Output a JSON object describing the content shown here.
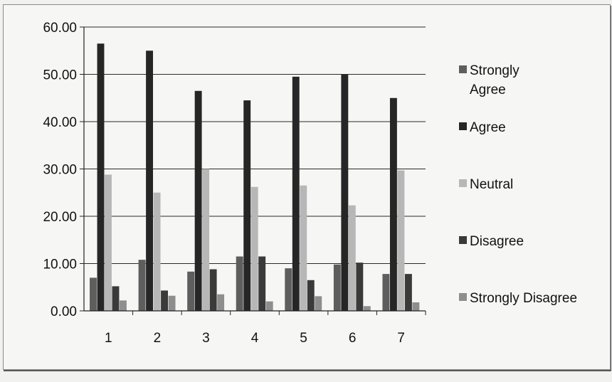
{
  "chart_data": {
    "type": "bar",
    "categories": [
      "1",
      "2",
      "3",
      "4",
      "5",
      "6",
      "7"
    ],
    "ylim": [
      0,
      60
    ],
    "yticks": [
      "0.00",
      "10.00",
      "20.00",
      "30.00",
      "40.00",
      "50.00",
      "60.00"
    ],
    "grid": true,
    "legend_position": "right",
    "series": [
      {
        "name": "Strongly Agree",
        "color": "#5e5e5e",
        "values": [
          7.0,
          10.8,
          8.3,
          11.5,
          9.0,
          9.8,
          7.8
        ]
      },
      {
        "name": "Agree",
        "color": "#262626",
        "values": [
          56.5,
          55.0,
          46.5,
          44.5,
          49.5,
          50.0,
          45.0
        ]
      },
      {
        "name": "Neutral",
        "color": "#b7b7b7",
        "values": [
          28.8,
          25.0,
          30.0,
          26.2,
          26.5,
          22.3,
          29.7
        ]
      },
      {
        "name": "Disagree",
        "color": "#3a3a3a",
        "values": [
          5.2,
          4.3,
          8.8,
          11.5,
          6.5,
          10.2,
          7.8
        ]
      },
      {
        "name": "Strongly Disagree",
        "color": "#8e8e8e",
        "values": [
          2.2,
          3.2,
          3.5,
          2.0,
          3.1,
          1.0,
          1.8
        ]
      }
    ]
  }
}
